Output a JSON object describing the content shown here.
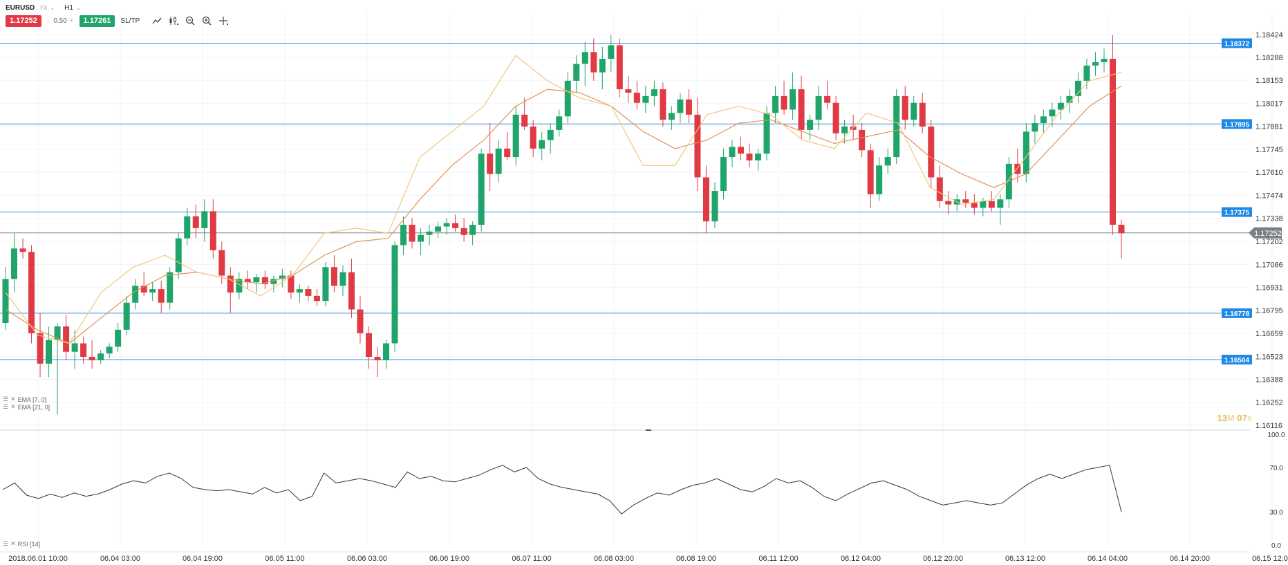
{
  "header": {
    "symbol": "EURUSD",
    "market": "FX",
    "timeframe": "H1",
    "sell_price": "1.17252",
    "spread": "0.50",
    "buy_price": "1.17261",
    "sltp_label": "SL/TP"
  },
  "indicators": {
    "ema_fast": "EMA [7, 0]",
    "ema_slow": "EMA [21, 0]",
    "rsi": "RSI [14]"
  },
  "timer": {
    "minutes": "13",
    "m": "M",
    "seconds": "07",
    "s": "s"
  },
  "colors": {
    "bull": "#1fa56a",
    "bear": "#e03a44",
    "ema_fast": "#f2c77a",
    "ema_slow": "#e0925a",
    "level_line": "#3b8fd9",
    "level_badge": "#1e88e5",
    "current_price": "#7b7f86",
    "rsi_line": "#333333"
  },
  "chart_data": {
    "type": "candlestick",
    "price_axis_labels": [
      "1.18424",
      "1.18288",
      "1.18153",
      "1.18017",
      "1.17881",
      "1.17745",
      "1.17610",
      "1.17474",
      "1.17338",
      "1.17202",
      "1.17066",
      "1.16931",
      "1.16795",
      "1.16659",
      "1.16523",
      "1.16388",
      "1.16252",
      "1.16116"
    ],
    "price_range": [
      1.16116,
      1.18479
    ],
    "time_axis_labels": [
      "2018.06.01 10:00",
      "06.04 03:00",
      "06.04 19:00",
      "06.05 11:00",
      "06.06 03:00",
      "06.06 19:00",
      "06.07 11:00",
      "06.08 03:00",
      "06.08 19:00",
      "06.11 12:00",
      "06.12 04:00",
      "06.12 20:00",
      "06.13 12:00",
      "06.14 04:00",
      "06.14 20:00",
      "06.15 12:00"
    ],
    "horizontal_levels": [
      "1.18372",
      "1.17895",
      "1.17375",
      "1.16778",
      "1.16504"
    ],
    "current_price": "1.17252",
    "rsi_axis_labels": [
      "100.0",
      "70.0",
      "30.0",
      "0.0"
    ],
    "rsi_range": [
      0,
      100
    ],
    "candles_approx": [
      [
        1.1672,
        1.1705,
        1.1668,
        1.1698
      ],
      [
        1.1698,
        1.1725,
        1.169,
        1.1716
      ],
      [
        1.1716,
        1.1722,
        1.171,
        1.1714
      ],
      [
        1.1714,
        1.1718,
        1.166,
        1.1666
      ],
      [
        1.1666,
        1.1678,
        1.164,
        1.1648
      ],
      [
        1.1648,
        1.167,
        1.164,
        1.1662
      ],
      [
        1.1662,
        1.1672,
        1.1618,
        1.167
      ],
      [
        1.167,
        1.1677,
        1.165,
        1.1655
      ],
      [
        1.1655,
        1.1668,
        1.1645,
        1.166
      ],
      [
        1.166,
        1.1664,
        1.1648,
        1.1652
      ],
      [
        1.1652,
        1.1662,
        1.1645,
        1.165
      ],
      [
        1.165,
        1.1656,
        1.1648,
        1.1654
      ],
      [
        1.1654,
        1.166,
        1.1651,
        1.1658
      ],
      [
        1.1658,
        1.1672,
        1.1655,
        1.1668
      ],
      [
        1.1668,
        1.1688,
        1.1665,
        1.1684
      ],
      [
        1.1684,
        1.1698,
        1.168,
        1.1694
      ],
      [
        1.1694,
        1.1702,
        1.1688,
        1.169
      ],
      [
        1.169,
        1.1696,
        1.1685,
        1.1692
      ],
      [
        1.1692,
        1.1697,
        1.1678,
        1.1684
      ],
      [
        1.1684,
        1.1705,
        1.168,
        1.1702
      ],
      [
        1.1702,
        1.1725,
        1.1698,
        1.1722
      ],
      [
        1.1722,
        1.174,
        1.1718,
        1.1735
      ],
      [
        1.1735,
        1.1742,
        1.1722,
        1.1728
      ],
      [
        1.1728,
        1.1745,
        1.172,
        1.1738
      ],
      [
        1.1738,
        1.1745,
        1.171,
        1.1715
      ],
      [
        1.1715,
        1.172,
        1.1695,
        1.17
      ],
      [
        1.17,
        1.1705,
        1.1678,
        1.169
      ],
      [
        1.169,
        1.1702,
        1.1686,
        1.1698
      ],
      [
        1.1698,
        1.1703,
        1.1692,
        1.1696
      ],
      [
        1.1696,
        1.1701,
        1.169,
        1.1699
      ],
      [
        1.1699,
        1.1703,
        1.1692,
        1.1695
      ],
      [
        1.1695,
        1.17,
        1.169,
        1.1698
      ],
      [
        1.1698,
        1.1704,
        1.1693,
        1.17
      ],
      [
        1.17,
        1.1703,
        1.1686,
        1.169
      ],
      [
        1.169,
        1.1695,
        1.1684,
        1.1692
      ],
      [
        1.1692,
        1.1694,
        1.1685,
        1.1688
      ],
      [
        1.1688,
        1.1692,
        1.1682,
        1.1685
      ],
      [
        1.1685,
        1.1708,
        1.1682,
        1.1705
      ],
      [
        1.1705,
        1.1712,
        1.169,
        1.1694
      ],
      [
        1.1694,
        1.1706,
        1.1688,
        1.1702
      ],
      [
        1.1702,
        1.171,
        1.1675,
        1.168
      ],
      [
        1.168,
        1.1688,
        1.166,
        1.1666
      ],
      [
        1.1666,
        1.167,
        1.1645,
        1.1652
      ],
      [
        1.1652,
        1.1658,
        1.164,
        1.165
      ],
      [
        1.165,
        1.1662,
        1.1645,
        1.166
      ],
      [
        1.166,
        1.172,
        1.1655,
        1.1718
      ],
      [
        1.1718,
        1.1735,
        1.1712,
        1.173
      ],
      [
        1.173,
        1.1734,
        1.1716,
        1.172
      ],
      [
        1.172,
        1.1728,
        1.1712,
        1.1724
      ],
      [
        1.1724,
        1.173,
        1.1718,
        1.1726
      ],
      [
        1.1726,
        1.1732,
        1.1722,
        1.1729
      ],
      [
        1.1729,
        1.1734,
        1.1724,
        1.1731
      ],
      [
        1.1731,
        1.1736,
        1.1726,
        1.1728
      ],
      [
        1.1728,
        1.1734,
        1.172,
        1.1724
      ],
      [
        1.1724,
        1.1732,
        1.1718,
        1.173
      ],
      [
        1.173,
        1.1775,
        1.1726,
        1.1772
      ],
      [
        1.1772,
        1.179,
        1.175,
        1.176
      ],
      [
        1.176,
        1.178,
        1.1755,
        1.1775
      ],
      [
        1.1775,
        1.1785,
        1.1768,
        1.177
      ],
      [
        1.177,
        1.18,
        1.1765,
        1.1795
      ],
      [
        1.1795,
        1.1805,
        1.1786,
        1.1788
      ],
      [
        1.1788,
        1.1792,
        1.177,
        1.1775
      ],
      [
        1.1775,
        1.1785,
        1.1768,
        1.178
      ],
      [
        1.178,
        1.179,
        1.1772,
        1.1786
      ],
      [
        1.1786,
        1.1798,
        1.1782,
        1.1794
      ],
      [
        1.1794,
        1.182,
        1.179,
        1.1815
      ],
      [
        1.1815,
        1.183,
        1.1808,
        1.1825
      ],
      [
        1.1825,
        1.1838,
        1.1812,
        1.1832
      ],
      [
        1.1832,
        1.184,
        1.1815,
        1.182
      ],
      [
        1.182,
        1.1835,
        1.181,
        1.1828
      ],
      [
        1.1828,
        1.1842,
        1.182,
        1.1836
      ],
      [
        1.1836,
        1.184,
        1.1805,
        1.181
      ],
      [
        1.181,
        1.1818,
        1.1802,
        1.1808
      ],
      [
        1.1808,
        1.1815,
        1.1798,
        1.1802
      ],
      [
        1.1802,
        1.1812,
        1.1796,
        1.1806
      ],
      [
        1.1806,
        1.1815,
        1.18,
        1.181
      ],
      [
        1.181,
        1.1814,
        1.1788,
        1.1792
      ],
      [
        1.1792,
        1.18,
        1.1786,
        1.1796
      ],
      [
        1.1796,
        1.1808,
        1.179,
        1.1804
      ],
      [
        1.1804,
        1.181,
        1.179,
        1.1795
      ],
      [
        1.1795,
        1.1805,
        1.175,
        1.1758
      ],
      [
        1.1758,
        1.1765,
        1.1725,
        1.1732
      ],
      [
        1.1732,
        1.1755,
        1.1728,
        1.175
      ],
      [
        1.175,
        1.1775,
        1.1745,
        1.177
      ],
      [
        1.177,
        1.178,
        1.1764,
        1.1776
      ],
      [
        1.1776,
        1.1782,
        1.1768,
        1.1772
      ],
      [
        1.1772,
        1.1778,
        1.1764,
        1.1768
      ],
      [
        1.1768,
        1.1775,
        1.1762,
        1.1772
      ],
      [
        1.1772,
        1.18,
        1.1768,
        1.1796
      ],
      [
        1.1796,
        1.1812,
        1.179,
        1.1806
      ],
      [
        1.1806,
        1.1815,
        1.1795,
        1.1798
      ],
      [
        1.1798,
        1.182,
        1.1792,
        1.181
      ],
      [
        1.181,
        1.1818,
        1.178,
        1.1786
      ],
      [
        1.1786,
        1.1795,
        1.178,
        1.1792
      ],
      [
        1.1792,
        1.1812,
        1.1786,
        1.1806
      ],
      [
        1.1806,
        1.1815,
        1.1798,
        1.1802
      ],
      [
        1.1802,
        1.1806,
        1.178,
        1.1784
      ],
      [
        1.1784,
        1.1792,
        1.1778,
        1.1788
      ],
      [
        1.1788,
        1.1795,
        1.178,
        1.1786
      ],
      [
        1.1786,
        1.179,
        1.177,
        1.1774
      ],
      [
        1.1774,
        1.1778,
        1.174,
        1.1748
      ],
      [
        1.1748,
        1.177,
        1.1744,
        1.1765
      ],
      [
        1.1765,
        1.1775,
        1.176,
        1.177
      ],
      [
        1.177,
        1.181,
        1.1766,
        1.1806
      ],
      [
        1.1806,
        1.1812,
        1.1786,
        1.1792
      ],
      [
        1.1792,
        1.1806,
        1.1788,
        1.1802
      ],
      [
        1.1802,
        1.1808,
        1.1784,
        1.1788
      ],
      [
        1.1788,
        1.1792,
        1.1752,
        1.1758
      ],
      [
        1.1758,
        1.1765,
        1.174,
        1.1744
      ],
      [
        1.1744,
        1.175,
        1.1736,
        1.1742
      ],
      [
        1.1742,
        1.1748,
        1.1738,
        1.1745
      ],
      [
        1.1745,
        1.175,
        1.174,
        1.1743
      ],
      [
        1.1743,
        1.1748,
        1.1736,
        1.174
      ],
      [
        1.174,
        1.1746,
        1.1735,
        1.1744
      ],
      [
        1.1744,
        1.175,
        1.1738,
        1.174
      ],
      [
        1.174,
        1.1748,
        1.173,
        1.1745
      ],
      [
        1.1745,
        1.177,
        1.174,
        1.1766
      ],
      [
        1.1766,
        1.1775,
        1.1755,
        1.176
      ],
      [
        1.176,
        1.179,
        1.1755,
        1.1785
      ],
      [
        1.1785,
        1.1795,
        1.1778,
        1.179
      ],
      [
        1.179,
        1.1798,
        1.1784,
        1.1794
      ],
      [
        1.1794,
        1.1802,
        1.1788,
        1.1798
      ],
      [
        1.1798,
        1.1806,
        1.1792,
        1.1802
      ],
      [
        1.1802,
        1.181,
        1.1796,
        1.1806
      ],
      [
        1.1806,
        1.182,
        1.1802,
        1.1815
      ],
      [
        1.1815,
        1.1828,
        1.181,
        1.1824
      ],
      [
        1.1824,
        1.1832,
        1.1818,
        1.1826
      ],
      [
        1.1826,
        1.1834,
        1.182,
        1.1828
      ],
      [
        1.1828,
        1.1842,
        1.1724,
        1.173
      ],
      [
        1.173,
        1.1733,
        1.171,
        1.1725
      ]
    ],
    "ema_fast_approx": [
      1.169,
      1.1665,
      1.166,
      1.169,
      1.1705,
      1.1712,
      1.1702,
      1.1698,
      1.1688,
      1.17,
      1.1725,
      1.1728,
      1.1725,
      1.177,
      1.1785,
      1.18,
      1.183,
      1.1815,
      1.1805,
      1.18,
      1.1765,
      1.1765,
      1.1795,
      1.18,
      1.1795,
      1.178,
      1.1775,
      1.1796,
      1.179,
      1.1752,
      1.1742,
      1.1745,
      1.177,
      1.1795,
      1.1815,
      1.182
    ],
    "ema_slow_approx": [
      1.168,
      1.1668,
      1.166,
      1.1675,
      1.169,
      1.17,
      1.1702,
      1.1698,
      1.1695,
      1.17,
      1.1712,
      1.172,
      1.1722,
      1.1745,
      1.1765,
      1.178,
      1.18,
      1.181,
      1.1808,
      1.18,
      1.1785,
      1.1775,
      1.178,
      1.179,
      1.1792,
      1.1785,
      1.1778,
      1.1782,
      1.1786,
      1.177,
      1.176,
      1.1752,
      1.176,
      1.178,
      1.18,
      1.1812
    ],
    "rsi_approx": [
      50,
      56,
      45,
      42,
      46,
      43,
      47,
      44,
      46,
      50,
      55,
      58,
      56,
      62,
      65,
      60,
      52,
      50,
      49,
      50,
      48,
      46,
      52,
      47,
      50,
      40,
      44,
      65,
      56,
      58,
      60,
      58,
      55,
      52,
      66,
      60,
      62,
      58,
      57,
      60,
      63,
      68,
      72,
      66,
      70,
      60,
      55,
      52,
      50,
      48,
      46,
      40,
      28,
      36,
      42,
      47,
      45,
      50,
      54,
      56,
      60,
      55,
      50,
      48,
      53,
      60,
      56,
      58,
      52,
      44,
      40,
      46,
      51,
      56,
      58,
      54,
      50,
      44,
      40,
      36,
      38,
      40,
      38,
      36,
      38,
      46,
      54,
      60,
      64,
      60,
      64,
      68,
      70,
      72,
      30
    ]
  }
}
